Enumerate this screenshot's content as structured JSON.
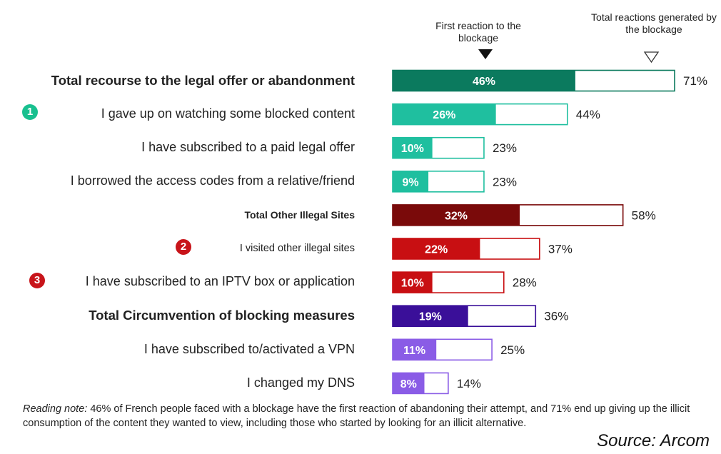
{
  "legend": {
    "first_reaction": "First reaction to the blockage",
    "total_reactions": "Total reactions generated by the blockage"
  },
  "note": {
    "prefix": "Reading note:",
    "text": " 46% of French people faced with a blockage have the first reaction of abandoning their attempt, and 71% end up giving up the illicit consumption of the content they wanted to view, including those who started by looking for an illicit alternative."
  },
  "source": "Source: Arcom",
  "chart_data": {
    "type": "bar",
    "orientation": "horizontal",
    "value_unit": "%",
    "categories": [
      "Total recourse to the legal offer or abandonment",
      "I gave up on watching some blocked content",
      "I have subscribed to a paid legal offer",
      "I borrowed the access codes from a relative/friend",
      "Total Other Illegal Sites",
      "I visited other illegal sites",
      "I have subscribed to an IPTV box or application",
      "Total Circumvention of blocking measures",
      "I have subscribed to/activated a VPN",
      "I changed my DNS"
    ],
    "series": [
      {
        "name": "First reaction to the blockage",
        "values": [
          46,
          26,
          10,
          9,
          32,
          22,
          10,
          19,
          11,
          8
        ]
      },
      {
        "name": "Total reactions generated by the blockage",
        "values": [
          71,
          44,
          23,
          23,
          58,
          37,
          28,
          36,
          25,
          14
        ]
      }
    ],
    "row_styles": [
      "total",
      "item",
      "item",
      "item",
      "total-small",
      "item-small",
      "item",
      "total",
      "item",
      "item"
    ],
    "row_colors": [
      "#0b7a5e",
      "#1fbf9f",
      "#1fbf9f",
      "#1fbf9f",
      "#7a0a0a",
      "#c80f12",
      "#c80f12",
      "#3a0f99",
      "#8a5ce6",
      "#8a5ce6"
    ],
    "badges": [
      {
        "row": 1,
        "number": "1",
        "color": "#18c08f"
      },
      {
        "row": 5,
        "number": "2",
        "color": "#c8141a"
      },
      {
        "row": 6,
        "number": "3",
        "color": "#c8141a"
      }
    ],
    "xlim": [
      0,
      71
    ]
  }
}
